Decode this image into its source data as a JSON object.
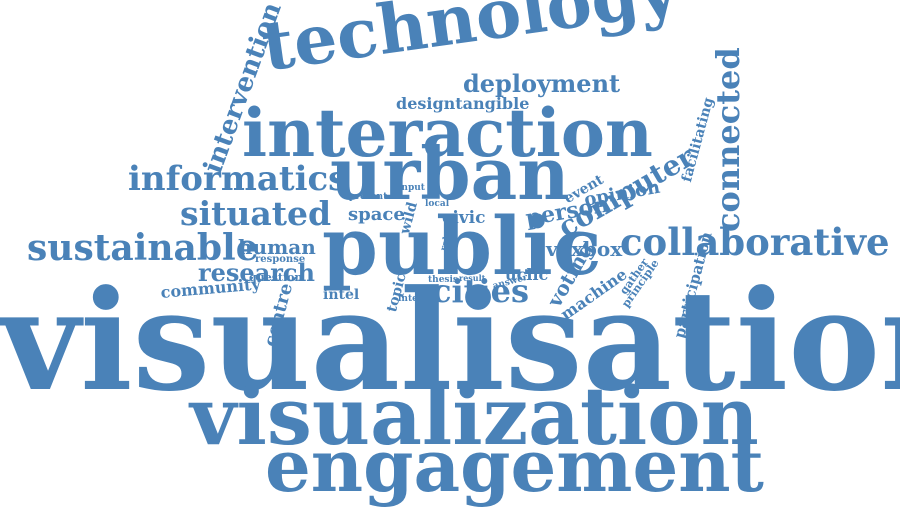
{
  "word_color": "#4a82b8",
  "background_color": "#ffffff",
  "words": [
    "technology",
    "deployment",
    "designtangible",
    "interaction",
    "intervention",
    "facilitating",
    "connected",
    "informatics",
    "urban",
    "event",
    "opinion",
    "situated",
    "present",
    "input",
    "local",
    "space",
    "wild",
    "civic",
    "person",
    "computer",
    "sustainable",
    "human",
    "response",
    "public",
    "collaborative",
    "voxbox",
    "research",
    "question",
    "role",
    "community",
    "centre",
    "intel",
    "topic",
    "thesis",
    "result",
    "answer",
    "interest",
    "cities",
    "uclic",
    "voting",
    "gather",
    "machine",
    "principle",
    "participation",
    "visualisation",
    "visualization",
    "engagement"
  ]
}
